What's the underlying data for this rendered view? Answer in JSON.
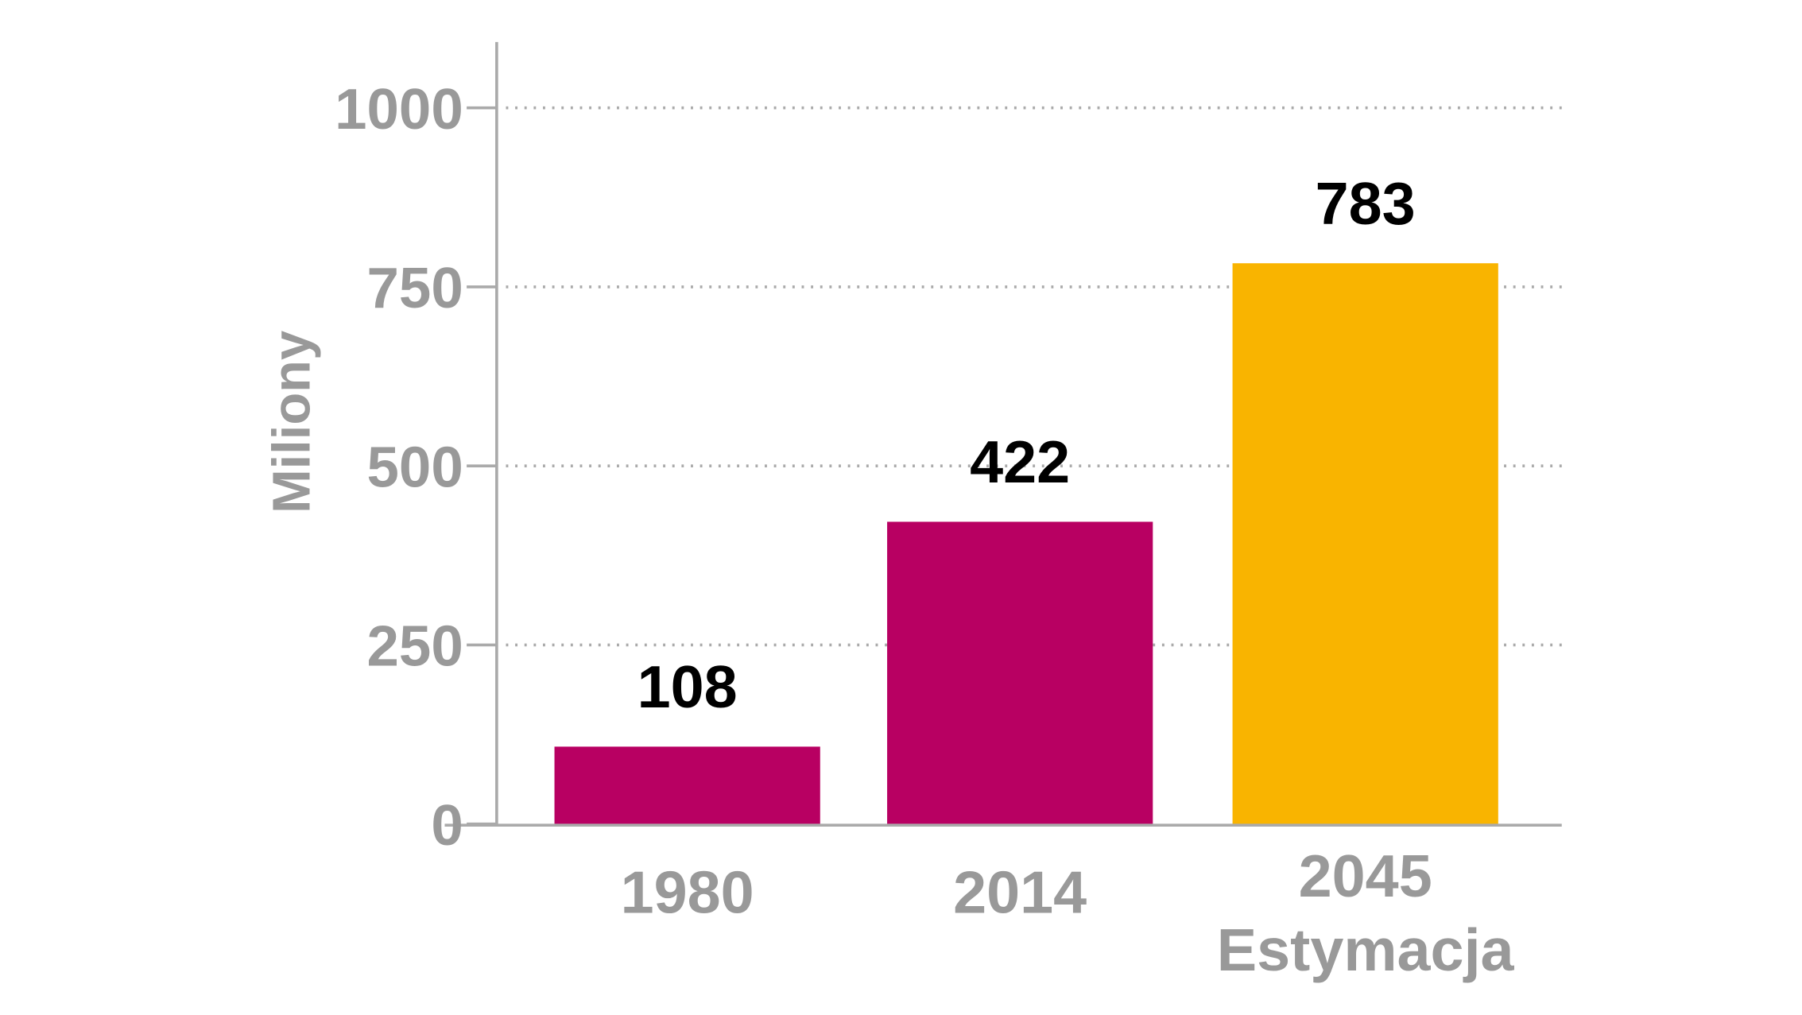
{
  "chart_data": {
    "type": "bar",
    "categories": [
      "1980",
      "2014",
      "2045"
    ],
    "category_sublabels": [
      "",
      "",
      "Estymacja"
    ],
    "values": [
      108,
      422,
      783
    ],
    "data_labels": [
      "108",
      "422",
      "783"
    ],
    "bar_colors": [
      "#b80062",
      "#b80062",
      "#f9b400"
    ],
    "title": "",
    "xlabel": "",
    "ylabel": "Miliony",
    "ylim": [
      0,
      1100
    ],
    "yticks": [
      0,
      250,
      500,
      750,
      1000
    ],
    "ytick_labels": [
      "0",
      "250",
      "500",
      "750",
      "1000"
    ],
    "grid": "horizontal dotted",
    "legend": "none"
  },
  "colors": {
    "axis": "#aaaaaa",
    "text_gray": "#999999",
    "grid": "#aaaaaa"
  }
}
